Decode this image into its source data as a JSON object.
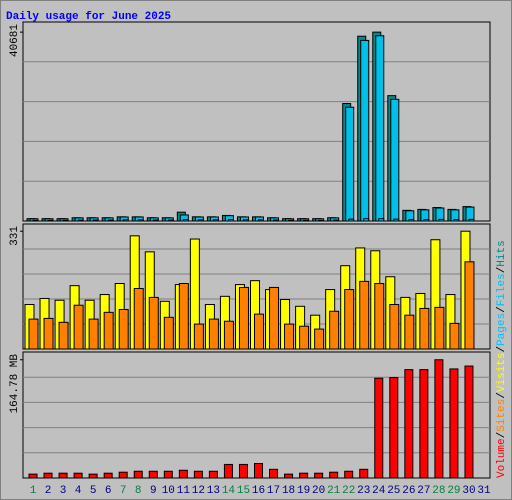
{
  "chart_data": {
    "title": "Daily usage for June 2025",
    "categories": [
      "1",
      "2",
      "3",
      "4",
      "5",
      "6",
      "7",
      "8",
      "9",
      "10",
      "11",
      "12",
      "13",
      "14",
      "15",
      "16",
      "17",
      "18",
      "19",
      "20",
      "21",
      "22",
      "23",
      "24",
      "25",
      "26",
      "27",
      "28",
      "29",
      "30",
      "31"
    ],
    "category_colors": [
      "#008040",
      "#000080",
      "#000080",
      "#000080",
      "#000080",
      "#000080",
      "#008040",
      "#008040",
      "#000080",
      "#000080",
      "#000080",
      "#000080",
      "#000080",
      "#008040",
      "#008040",
      "#000080",
      "#000080",
      "#000080",
      "#000080",
      "#000080",
      "#008040",
      "#008040",
      "#000080",
      "#000080",
      "#000080",
      "#000080",
      "#000080",
      "#008040",
      "#008040",
      "#000080",
      "#000080"
    ],
    "legend_separator": "/",
    "panels": [
      {
        "type": "bar",
        "ylim": [
          0,
          42000
        ],
        "yticks": [
          40681
        ],
        "series": [
          {
            "name": "Hits",
            "color": "#008b8b",
            "values": [
              500,
              500,
              500,
              700,
              700,
              700,
              900,
              900,
              700,
              700,
              1900,
              900,
              900,
              1200,
              900,
              900,
              700,
              500,
              500,
              500,
              700,
              25300,
              39800,
              40681,
              27000,
              2300,
              2500,
              2900,
              2500,
              3100,
              null
            ]
          },
          {
            "name": "Files",
            "color": "#00bfe8",
            "values": [
              480,
              480,
              480,
              680,
              680,
              680,
              870,
              870,
              680,
              680,
              1300,
              870,
              870,
              1150,
              870,
              870,
              680,
              480,
              480,
              480,
              680,
              24500,
              38900,
              39900,
              26200,
              2200,
              2400,
              2800,
              2400,
              3000,
              null
            ]
          },
          {
            "name": "Pages",
            "color": "#00c0ff",
            "values": [
              150,
              150,
              150,
              200,
              200,
              200,
              250,
              250,
              200,
              200,
              300,
              250,
              250,
              300,
              250,
              250,
              200,
              150,
              150,
              150,
              200,
              400,
              500,
              500,
              400,
              300,
              300,
              350,
              300,
              350,
              null
            ]
          }
        ]
      },
      {
        "type": "bar",
        "ylim": [
          0,
          340
        ],
        "yticks": [
          331
        ],
        "series": [
          {
            "name": "Visits",
            "color": "#ffff00",
            "values": [
              125,
              142,
              137,
              178,
              137,
              153,
              184,
              318,
              273,
              134,
              181,
              309,
              125,
              148,
              181,
              192,
              167,
              139,
              120,
              95,
              167,
              234,
              284,
              276,
              203,
              145,
              156,
              307,
              153,
              331,
              null
            ]
          },
          {
            "name": "Sites",
            "color": "#ff8000",
            "values": [
              84,
              86,
              75,
              123,
              84,
              103,
              111,
              170,
              145,
              89,
              184,
              70,
              84,
              78,
              173,
              98,
              173,
              70,
              64,
              56,
              106,
              167,
              190,
              184,
              125,
              95,
              114,
              117,
              72,
              245,
              null
            ]
          }
        ]
      },
      {
        "type": "bar",
        "ylim": [
          0,
          170
        ],
        "yticks": [
          {
            "value": 164.78,
            "label": "164.78 MB"
          }
        ],
        "series": [
          {
            "name": "Volume",
            "color": "#ff0000",
            "values": [
              5.4,
              6.7,
              6.7,
              6.7,
              5.4,
              6.7,
              8.1,
              9.4,
              9.4,
              9.4,
              10.8,
              9.4,
              9.4,
              18.9,
              18.9,
              20.2,
              12.1,
              5.4,
              6.7,
              6.7,
              8.1,
              9.4,
              12.1,
              139,
              140,
              151,
              151,
              164.78,
              152,
              156,
              null
            ]
          }
        ]
      }
    ]
  }
}
